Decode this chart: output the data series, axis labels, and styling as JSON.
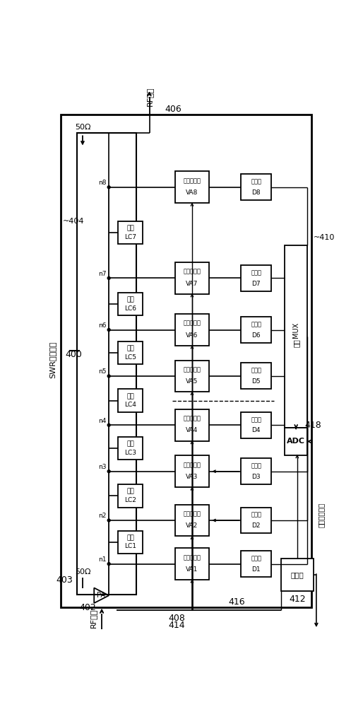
{
  "bg_color": "#ffffff",
  "line_color": "#000000",
  "lc_label": "延迟",
  "va_label": "可变衰减器",
  "det_label": "检测器",
  "swr_label": "SWR测量单元",
  "mux_label": "MUX 开关",
  "adc_label": "ADC",
  "ctrl_label": "控制器",
  "antenna_label": "到天线调谐器",
  "rf_out_label": "RF输出",
  "rf_in_label": "RF进入",
  "label_400": "400",
  "label_404": "~404",
  "label_402": "402",
  "label_403": "403",
  "label_406": "406",
  "label_408": "408",
  "label_410": "~410",
  "label_412": "412",
  "label_414": "414",
  "label_416": "416",
  "label_418": "418",
  "label_50ohm_top": "50Ω",
  "label_50ohm_bot": "50Ω",
  "pa_label": "PA",
  "nodes": [
    "n1",
    "n2",
    "n3",
    "n4",
    "n5",
    "n6",
    "n7",
    "n8"
  ],
  "lc_names": [
    "LC1",
    "LC2",
    "LC3",
    "LC4",
    "LC5",
    "LC6",
    "LC7"
  ],
  "va_names": [
    "VA1",
    "VA2",
    "VA3",
    "VA4",
    "VA5",
    "VA6",
    "VA7",
    "VA8"
  ],
  "det_names": [
    "D1",
    "D2",
    "D3",
    "D4",
    "D5",
    "D6",
    "D7",
    "D8"
  ]
}
